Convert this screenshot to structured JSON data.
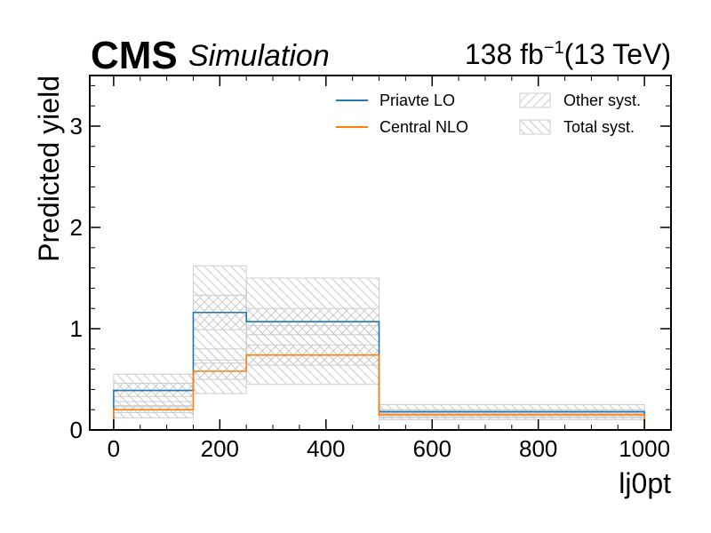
{
  "header": {
    "experiment": "CMS",
    "label": "Simulation",
    "lumi_value": "138 fb",
    "lumi_exp": "−1",
    "energy": "(13 TeV)"
  },
  "colors": {
    "lo": "#1f77b4",
    "nlo": "#ff7f0e",
    "band": "#cccccc"
  },
  "chart_data": {
    "type": "histogram-step",
    "xlabel": "lj0pt",
    "ylabel": "Predicted yield",
    "xlim": [
      -45,
      1050
    ],
    "ylim": [
      0,
      3.5
    ],
    "xticks": [
      0,
      200,
      400,
      600,
      800,
      1000
    ],
    "xtick_labels": [
      "0",
      "200",
      "400",
      "600",
      "800",
      "1000"
    ],
    "yticks": [
      0,
      1,
      2,
      3
    ],
    "ytick_labels": [
      "0",
      "1",
      "2",
      "3"
    ],
    "bin_edges": [
      0,
      150,
      250,
      500,
      1000
    ],
    "series": [
      {
        "name": "Priavte LO",
        "color": "#1f77b4",
        "values": [
          0.39,
          1.16,
          1.07,
          0.18
        ]
      },
      {
        "name": "Central NLO",
        "color": "#ff7f0e",
        "values": [
          0.2,
          0.58,
          0.74,
          0.15
        ]
      }
    ],
    "bands": [
      {
        "name": "Other syst.",
        "hatch": "/",
        "series": "Priavte LO",
        "low": [
          0.33,
          0.99,
          0.94,
          0.16
        ],
        "high": [
          0.46,
          1.33,
          1.2,
          0.2
        ]
      },
      {
        "name": "Total syst.",
        "hatch": "\\",
        "series": "Priavte LO",
        "low": [
          0.23,
          0.69,
          0.64,
          0.12
        ],
        "high": [
          0.55,
          1.62,
          1.5,
          0.25
        ]
      },
      {
        "name": "Other syst.",
        "hatch": "/",
        "series": "Central NLO",
        "low": [
          0.17,
          0.5,
          0.64,
          0.13
        ],
        "high": [
          0.24,
          0.66,
          0.84,
          0.17
        ]
      },
      {
        "name": "Total syst.",
        "hatch": "\\",
        "series": "Central NLO",
        "low": [
          0.12,
          0.36,
          0.45,
          0.1
        ],
        "high": [
          0.28,
          0.8,
          1.03,
          0.2
        ]
      }
    ],
    "legend": {
      "placement": "top-right",
      "entries": [
        {
          "label": "Priavte LO",
          "kind": "line",
          "color": "#1f77b4"
        },
        {
          "label": "Central NLO",
          "kind": "line",
          "color": "#ff7f0e"
        },
        {
          "label": "Other syst.",
          "kind": "hatch",
          "hatch": "/"
        },
        {
          "label": "Total syst.",
          "kind": "hatch",
          "hatch": "\\"
        }
      ]
    },
    "grid": false
  }
}
